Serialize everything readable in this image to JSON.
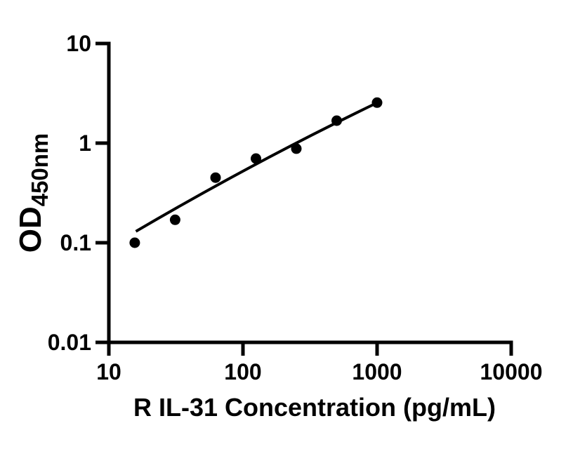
{
  "figure": {
    "background_color": "#ffffff",
    "ink_color": "#000000"
  },
  "chart_data": {
    "type": "scatter",
    "title": "",
    "xlabel": "R IL-31 Concentration (pg/mL)",
    "ylabel_main": "OD",
    "ylabel_sub": "450nm",
    "x_scale": "log",
    "y_scale": "log",
    "xlim": [
      10,
      10000
    ],
    "ylim": [
      0.01,
      10
    ],
    "grid": false,
    "legend": "none",
    "x_ticks": [
      {
        "value": 10,
        "label": "10"
      },
      {
        "value": 100,
        "label": "100"
      },
      {
        "value": 1000,
        "label": "1000"
      },
      {
        "value": 10000,
        "label": "10000"
      }
    ],
    "y_ticks": [
      {
        "value": 10,
        "label": "10"
      },
      {
        "value": 1,
        "label": "1"
      },
      {
        "value": 0.1,
        "label": "0.1"
      },
      {
        "value": 0.01,
        "label": "0.01"
      }
    ],
    "series": [
      {
        "name": "standard-curve-points",
        "marker": "filled-circle",
        "color": "#000000",
        "points": [
          {
            "x": 15.6,
            "y": 0.1
          },
          {
            "x": 31.2,
            "y": 0.17
          },
          {
            "x": 62.5,
            "y": 0.45
          },
          {
            "x": 125,
            "y": 0.7
          },
          {
            "x": 250,
            "y": 0.88
          },
          {
            "x": 500,
            "y": 1.68
          },
          {
            "x": 1000,
            "y": 2.55
          }
        ]
      }
    ],
    "trend_line": {
      "color": "#000000",
      "x1": 15.9,
      "y1": 0.13,
      "x2": 988,
      "y2": 2.52
    }
  }
}
